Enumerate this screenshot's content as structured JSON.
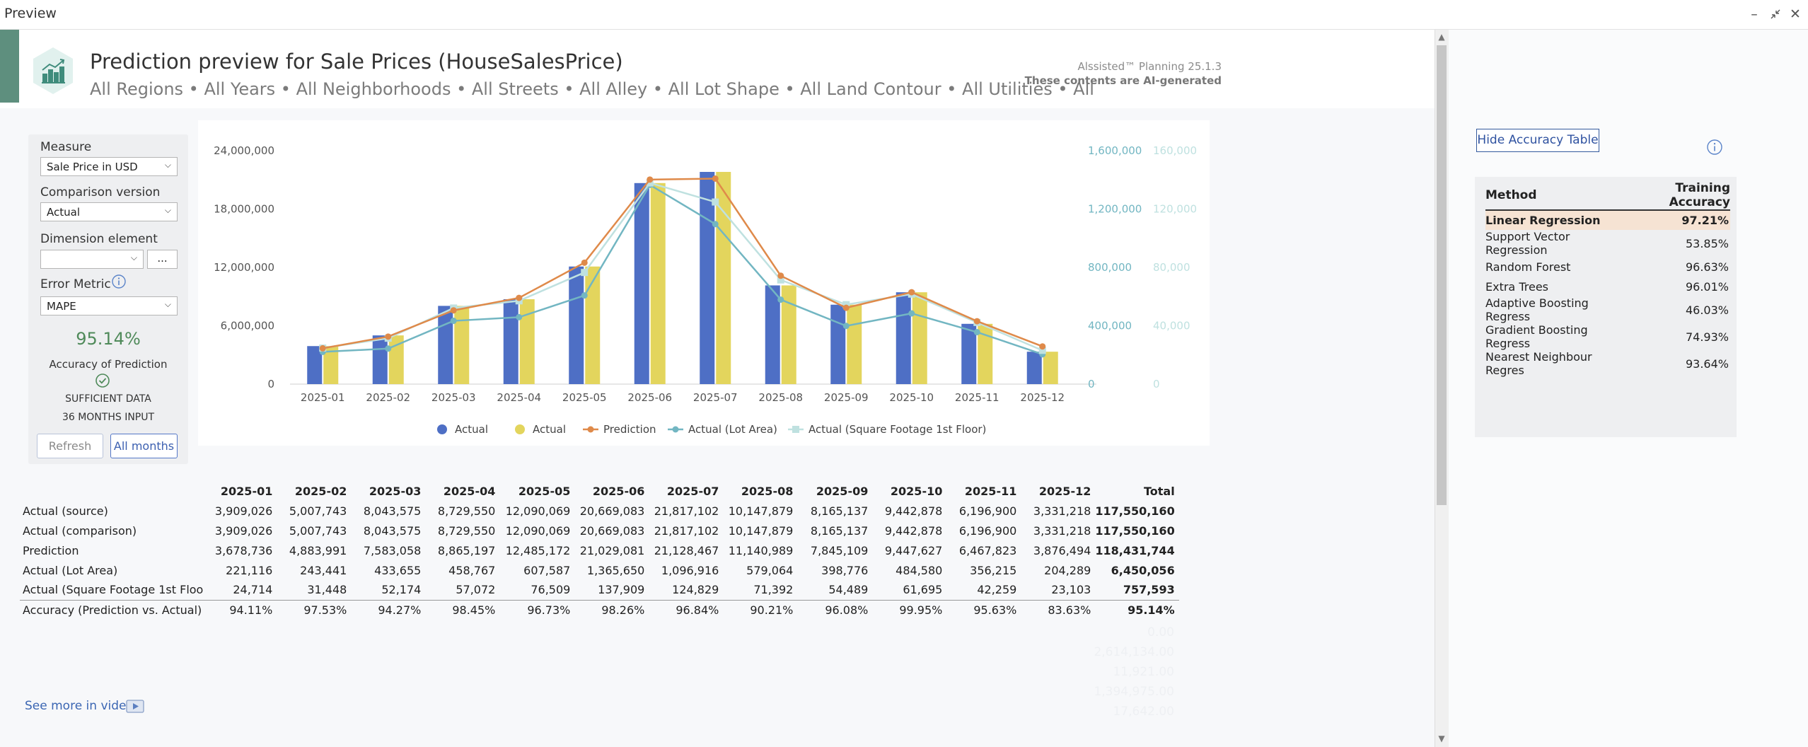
{
  "window": {
    "title": "Preview"
  },
  "header": {
    "title": "Prediction preview for Sale Prices (HouseSalesPrice)",
    "filters": "All Regions • All Years • All Neighborhoods • All Streets • All Alley • All Lot Shape • All Land Contour • All Utilities • All",
    "brand_version": "Alssisted™ Planning 25.1.3",
    "brand_ai": "These contents are AI-generated"
  },
  "left_panel": {
    "measure_label": "Measure",
    "measure_value": "Sale Price in USD",
    "comparison_label": "Comparison version",
    "comparison_value": "Actual",
    "dimension_label": "Dimension element",
    "dimension_value": "",
    "dimension_browse": "...",
    "error_metric_label": "Error Metric",
    "error_metric_value": "MAPE",
    "accuracy_value": "95.14%",
    "accuracy_label": "Accuracy of Prediction",
    "data_status": "SUFFICIENT DATA",
    "months_input": "36 MONTHS INPUT",
    "refresh_label": "Refresh",
    "all_months_label": "All months"
  },
  "colors": {
    "actual_bar_blue": "#4e6fc5",
    "actual_bar_yellow": "#e3d55d",
    "prediction_line": "#df8a4a",
    "lot_area_line": "#72b6c2",
    "sqft_line": "#bfe1e0",
    "accuracy_green": "#4f8a5a"
  },
  "chart_data": {
    "type": "bar",
    "categories": [
      "2025-01",
      "2025-02",
      "2025-03",
      "2025-04",
      "2025-05",
      "2025-06",
      "2025-07",
      "2025-08",
      "2025-09",
      "2025-10",
      "2025-11",
      "2025-12"
    ],
    "series": [
      {
        "name": "Actual",
        "kind": "bar",
        "axis": "left",
        "values": [
          3909026,
          5007743,
          8043575,
          8729550,
          12090069,
          20669083,
          21817102,
          10147879,
          8165137,
          9442878,
          6196900,
          3331218
        ]
      },
      {
        "name": "Actual",
        "kind": "bar",
        "axis": "left",
        "values": [
          3909026,
          5007743,
          8043575,
          8729550,
          12090069,
          20669083,
          21817102,
          10147879,
          8165137,
          9442878,
          6196900,
          3331218
        ]
      },
      {
        "name": "Prediction",
        "kind": "line",
        "axis": "left",
        "values": [
          3678736,
          4883991,
          7583058,
          8865197,
          12485172,
          21029081,
          21128467,
          11140989,
          7845109,
          9447627,
          6467823,
          3876494
        ]
      },
      {
        "name": "Actual (Lot Area)",
        "kind": "line",
        "axis": "right1",
        "values": [
          221116,
          243441,
          433655,
          458767,
          607587,
          1365650,
          1096916,
          579064,
          398776,
          484580,
          356215,
          204289
        ]
      },
      {
        "name": "Actual (Square Footage 1st Floor)",
        "kind": "line",
        "axis": "right2",
        "values": [
          24714,
          31448,
          52174,
          57072,
          76509,
          137909,
          124829,
          71392,
          54489,
          61695,
          42259,
          23103
        ]
      }
    ],
    "y_left_ticks": [
      "24,000,000",
      "18,000,000",
      "12,000,000",
      "6,000,000",
      "0"
    ],
    "y_right1_ticks": [
      "1,600,000",
      "1,200,000",
      "800,000",
      "400,000",
      "0"
    ],
    "y_right2_ticks": [
      "160,000",
      "120,000",
      "80,000",
      "40,000",
      "0"
    ],
    "ylim_left": [
      0,
      24000000
    ],
    "ylim_right1": [
      0,
      1600000
    ],
    "ylim_right2": [
      0,
      160000
    ],
    "legend_position": "bottom",
    "grid": false
  },
  "table": {
    "headers": [
      "",
      "2025-01",
      "2025-02",
      "2025-03",
      "2025-04",
      "2025-05",
      "2025-06",
      "2025-07",
      "2025-08",
      "2025-09",
      "2025-10",
      "2025-11",
      "2025-12",
      "Total"
    ],
    "rows": [
      {
        "label": "Actual (source)",
        "values": [
          "3,909,026",
          "5,007,743",
          "8,043,575",
          "8,729,550",
          "12,090,069",
          "20,669,083",
          "21,817,102",
          "10,147,879",
          "8,165,137",
          "9,442,878",
          "6,196,900",
          "3,331,218"
        ],
        "total": "117,550,160"
      },
      {
        "label": "Actual (comparison)",
        "values": [
          "3,909,026",
          "5,007,743",
          "8,043,575",
          "8,729,550",
          "12,090,069",
          "20,669,083",
          "21,817,102",
          "10,147,879",
          "8,165,137",
          "9,442,878",
          "6,196,900",
          "3,331,218"
        ],
        "total": "117,550,160"
      },
      {
        "label": "Prediction",
        "values": [
          "3,678,736",
          "4,883,991",
          "7,583,058",
          "8,865,197",
          "12,485,172",
          "21,029,081",
          "21,128,467",
          "11,140,989",
          "7,845,109",
          "9,447,627",
          "6,467,823",
          "3,876,494"
        ],
        "total": "118,431,744"
      },
      {
        "label": "Actual (Lot Area)",
        "values": [
          "221,116",
          "243,441",
          "433,655",
          "458,767",
          "607,587",
          "1,365,650",
          "1,096,916",
          "579,064",
          "398,776",
          "484,580",
          "356,215",
          "204,289"
        ],
        "total": "6,450,056"
      },
      {
        "label": "Actual (Square Footage 1st Floo",
        "values": [
          "24,714",
          "31,448",
          "52,174",
          "57,072",
          "76,509",
          "137,909",
          "124,829",
          "71,392",
          "54,489",
          "61,695",
          "42,259",
          "23,103"
        ],
        "total": "757,593"
      },
      {
        "label": "Accuracy (Prediction vs. Actual)",
        "values": [
          "94.11%",
          "97.53%",
          "94.27%",
          "98.45%",
          "96.73%",
          "98.26%",
          "96.84%",
          "90.21%",
          "96.08%",
          "99.95%",
          "95.63%",
          "83.63%"
        ],
        "total": "95.14%"
      }
    ]
  },
  "ghost_text": [
    "0.00",
    "2,614,134.00",
    "11,921.00",
    "1,394,975.00",
    "17,642.00"
  ],
  "footer": {
    "see_more": "See more in video"
  },
  "accuracy_panel": {
    "hide_button": "Hide Accuracy Table",
    "col_method": "Method",
    "col_accuracy": "Training Accuracy",
    "rows": [
      {
        "method": "Linear Regression",
        "accuracy": "97.21%"
      },
      {
        "method": "Support Vector Regression",
        "accuracy": "53.85%"
      },
      {
        "method": "Random Forest",
        "accuracy": "96.63%"
      },
      {
        "method": "Extra Trees",
        "accuracy": "96.01%"
      },
      {
        "method": "Adaptive Boosting Regress",
        "accuracy": "46.03%"
      },
      {
        "method": "Gradient Boosting Regress",
        "accuracy": "74.93%"
      },
      {
        "method": "Nearest Neighbour Regres",
        "accuracy": "93.64%"
      }
    ]
  }
}
